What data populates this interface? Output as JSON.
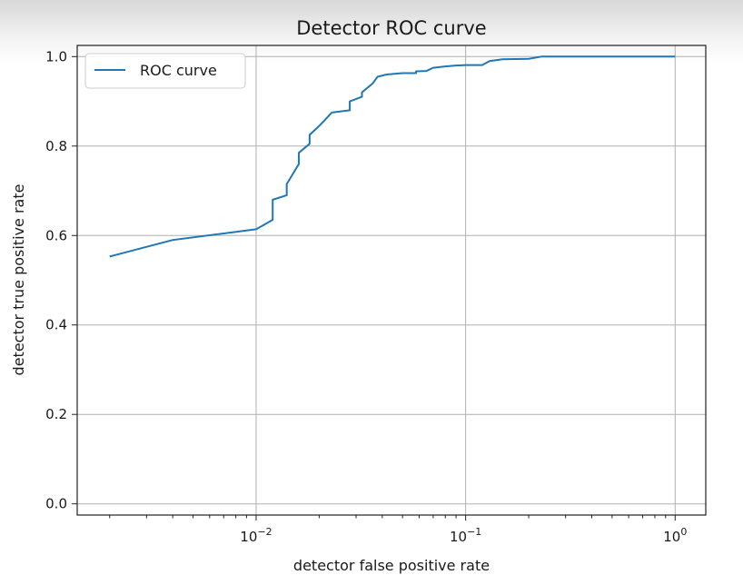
{
  "chart_data": {
    "type": "line",
    "title": "Detector ROC curve",
    "xlabel": "detector false positive rate",
    "ylabel": "detector true positive rate",
    "xscale": "log",
    "xlim": [
      0.0014,
      1.4
    ],
    "ylim": [
      -0.025,
      1.025
    ],
    "grid": true,
    "legend_position": "top-left",
    "x_ticks": [
      {
        "value": 0.01,
        "base": "10",
        "exp": "−2"
      },
      {
        "value": 0.1,
        "base": "10",
        "exp": "−1"
      },
      {
        "value": 1,
        "base": "10",
        "exp": "0"
      }
    ],
    "y_ticks": [
      {
        "value": 0.0,
        "label": "0.0"
      },
      {
        "value": 0.2,
        "label": "0.2"
      },
      {
        "value": 0.4,
        "label": "0.4"
      },
      {
        "value": 0.6,
        "label": "0.6"
      },
      {
        "value": 0.8,
        "label": "0.8"
      },
      {
        "value": 1.0,
        "label": "1.0"
      }
    ],
    "series": [
      {
        "name": "ROC curve",
        "color": "#1f77b4",
        "x": [
          0.002,
          0.004,
          0.01,
          0.012,
          0.012,
          0.014,
          0.014,
          0.016,
          0.016,
          0.018,
          0.018,
          0.02,
          0.023,
          0.028,
          0.028,
          0.032,
          0.032,
          0.036,
          0.038,
          0.042,
          0.05,
          0.058,
          0.058,
          0.065,
          0.07,
          0.08,
          0.09,
          0.1,
          0.12,
          0.13,
          0.15,
          0.2,
          0.23,
          0.3,
          0.5,
          1.0
        ],
        "y": [
          0.553,
          0.59,
          0.614,
          0.635,
          0.68,
          0.69,
          0.715,
          0.76,
          0.785,
          0.805,
          0.825,
          0.845,
          0.875,
          0.88,
          0.9,
          0.91,
          0.92,
          0.94,
          0.955,
          0.96,
          0.963,
          0.963,
          0.967,
          0.968,
          0.975,
          0.978,
          0.98,
          0.981,
          0.981,
          0.99,
          0.994,
          0.995,
          1.0,
          1.0,
          1.0,
          1.0
        ]
      }
    ]
  },
  "colors": {
    "line": "#1f77b4",
    "grid": "#b0b0b0",
    "axes": "#222222",
    "text": "#1a1a1a"
  }
}
